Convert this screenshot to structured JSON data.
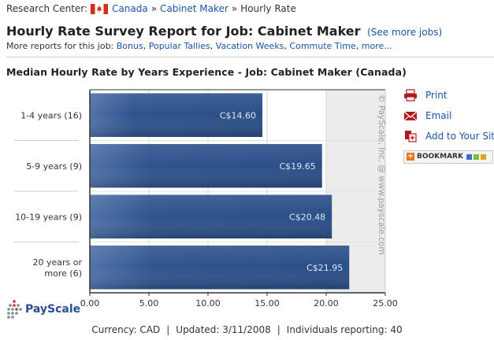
{
  "breadcrumb": {
    "prefix": "Research Center:",
    "country": "Canada",
    "separator": "»",
    "job": "Cabinet Maker",
    "current": "Hourly Rate"
  },
  "header": {
    "title": "Hourly Rate Survey Report for Job: Cabinet Maker",
    "see_more": "(See more jobs)"
  },
  "more_reports": {
    "label": "More reports for this job:",
    "links": [
      "Bonus",
      "Popular Tallies",
      "Vacation Weeks",
      "Commute Time",
      "more..."
    ]
  },
  "side_actions": {
    "print": "Print",
    "email": "Email",
    "add_to_site": "Add to Your Site",
    "bookmark": "BOOKMARK"
  },
  "logo": {
    "text": "PayScale"
  },
  "footer": {
    "currency": "Currency: CAD",
    "updated": "Updated: 3/11/2008",
    "reporting": "Individuals reporting: 40"
  },
  "colors": {
    "bar": "#2c5189",
    "bar_light": "#4a6fa8",
    "link": "#1a55a5",
    "plot_bg": "#ececec",
    "flag_red": "#d52b1e"
  },
  "chart_data": {
    "type": "bar",
    "orientation": "horizontal",
    "title": "Median Hourly Rate by Years Experience - Job: Cabinet Maker (Canada)",
    "categories": [
      "1-4 years (16)",
      "5-9 years (9)",
      "10-19 years (9)",
      "20 years or more (6)"
    ],
    "category_lines": [
      [
        "1-4 years (16)"
      ],
      [
        "5-9 years (9)"
      ],
      [
        "10-19 years (9)"
      ],
      [
        "20 years or",
        "more (6)"
      ]
    ],
    "values": [
      14.6,
      19.65,
      20.48,
      21.95
    ],
    "value_labels": [
      "C$14.60",
      "C$19.65",
      "C$20.48",
      "C$21.95"
    ],
    "xlim": [
      0,
      25
    ],
    "xticks": [
      "0.00",
      "5.00",
      "10.00",
      "15.00",
      "20.00",
      "25.00"
    ],
    "xtick_values": [
      0,
      5,
      10,
      15,
      20,
      25
    ],
    "grid": true,
    "watermark": "© PayScale, Inc. @ www.payscale.com"
  }
}
